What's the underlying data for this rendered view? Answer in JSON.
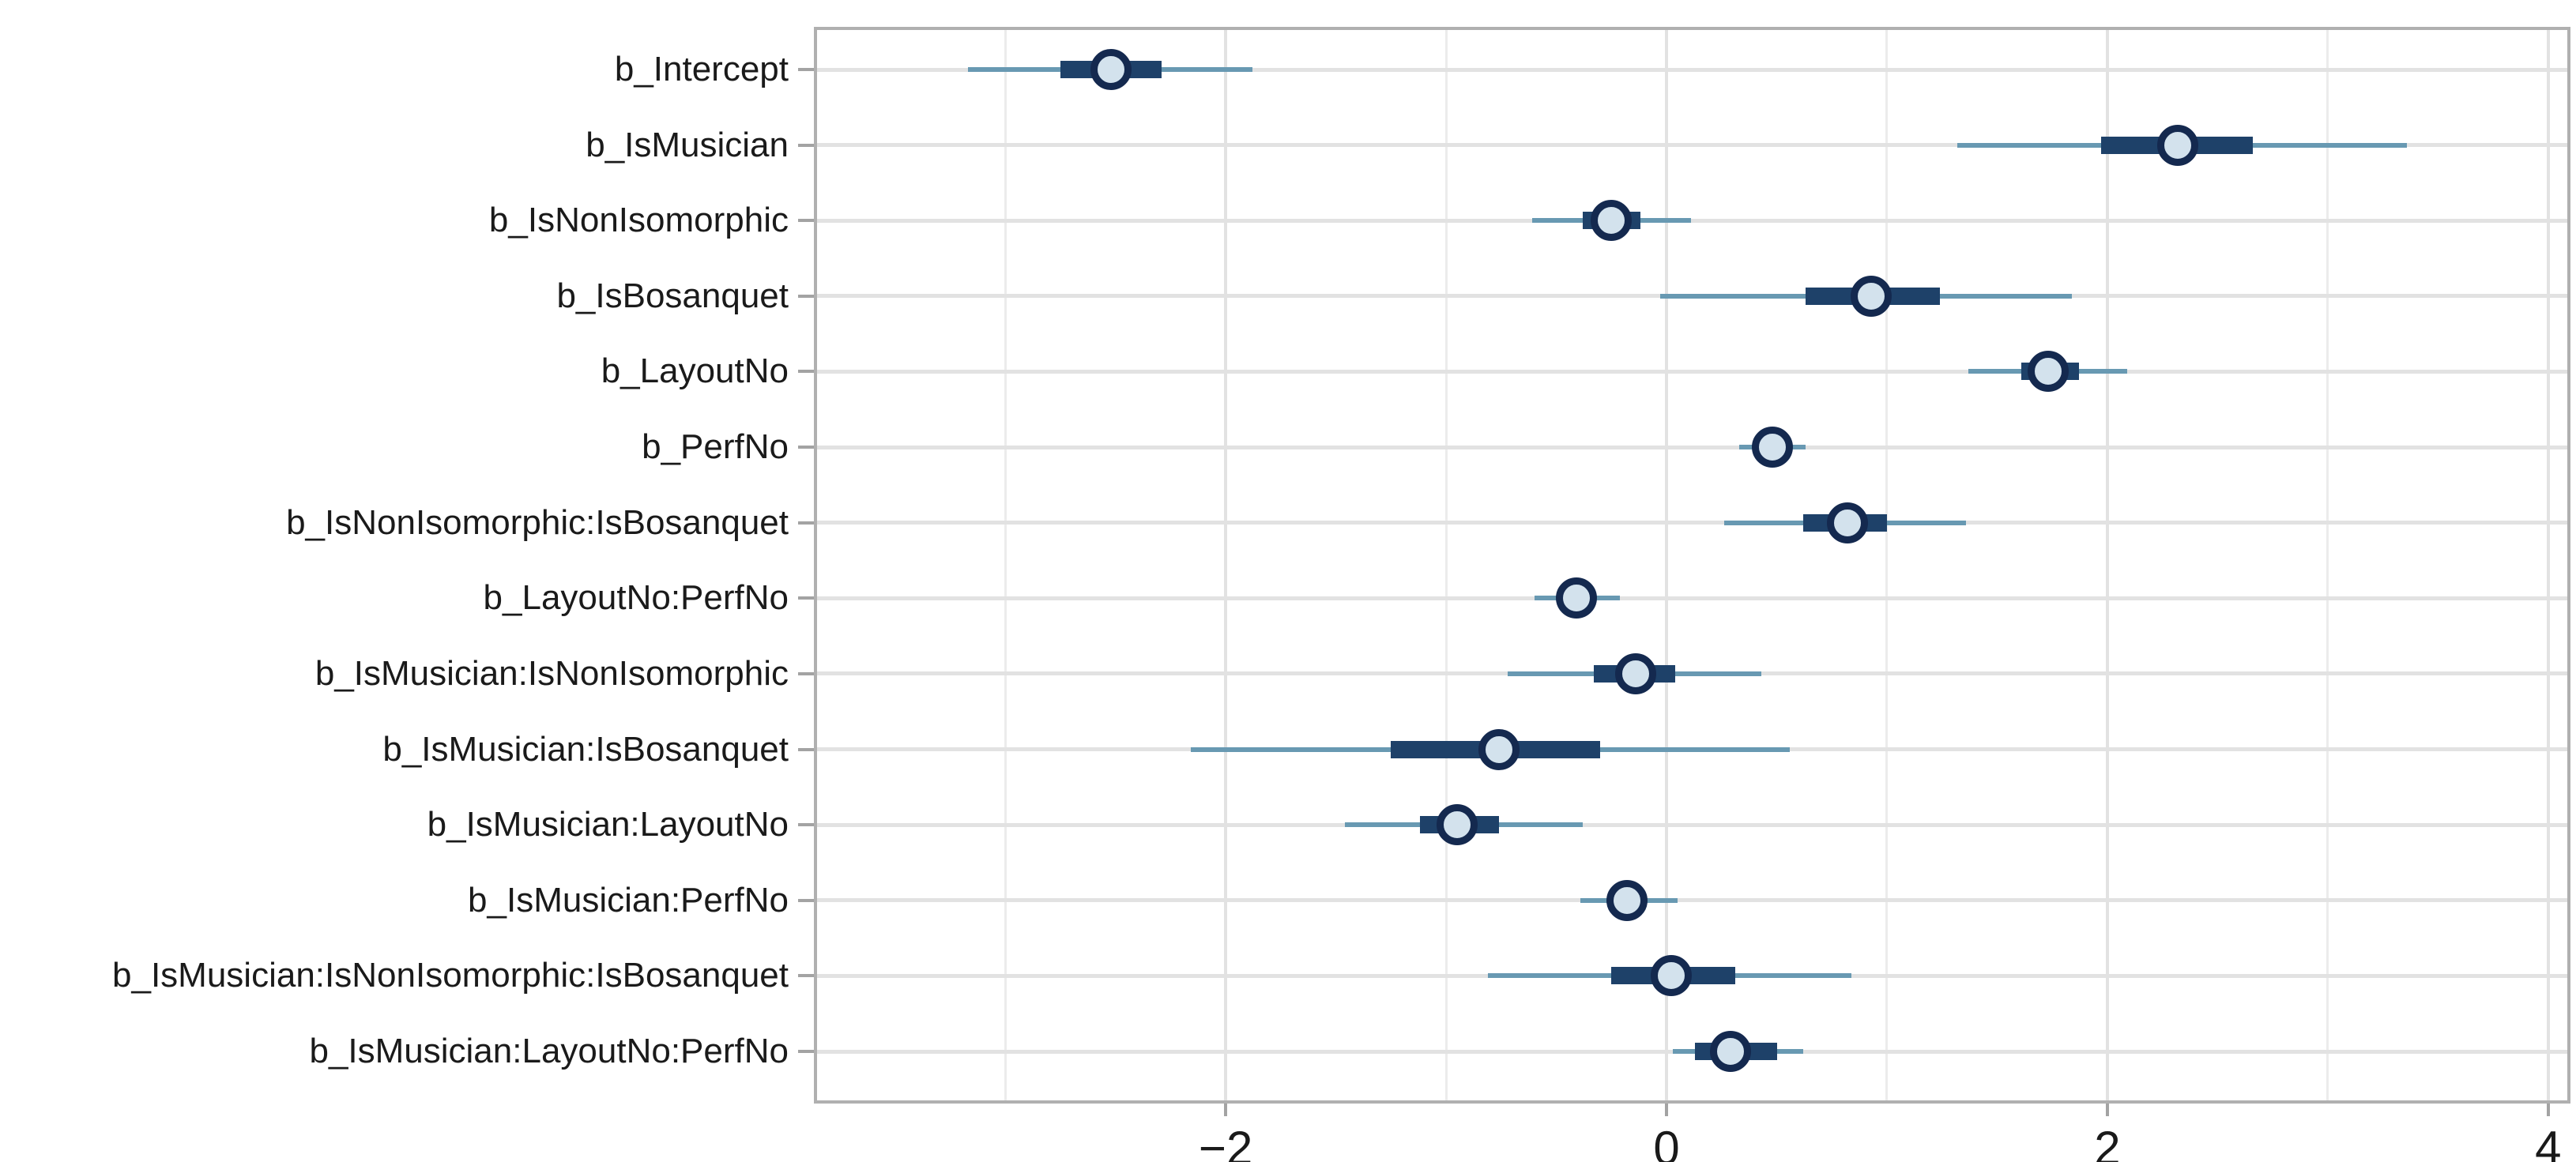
{
  "chart_data": {
    "type": "interval",
    "subtype": "mcmc_intervals_forest_plot",
    "title": "",
    "orientation": "horizontal",
    "grid": "on",
    "legend": "none",
    "x_axis": {
      "label": "",
      "range": [
        -3.85,
        4.09
      ],
      "major_ticks": [
        -2,
        0,
        2,
        4
      ],
      "major_tick_labels": [
        "−2",
        "0",
        "2",
        "4"
      ],
      "minor_gridlines": [
        -3,
        -1,
        1,
        3
      ]
    },
    "y_axis": {
      "label": "",
      "categories_top_to_bottom": [
        "b_Intercept",
        "b_IsMusician",
        "b_IsNonIsomorphic",
        "b_IsBosanquet",
        "b_LayoutNo",
        "b_PerfNo",
        "b_IsNonIsomorphic:IsBosanquet",
        "b_LayoutNo:PerfNo",
        "b_IsMusician:IsNonIsomorphic",
        "b_IsMusician:IsBosanquet",
        "b_IsMusician:LayoutNo",
        "b_IsMusician:PerfNo",
        "b_IsMusician:IsNonIsomorphic:IsBosanquet",
        "b_IsMusician:LayoutNo:PerfNo"
      ]
    },
    "series_description": "Each row: point estimate, inner (thick) interval, outer (thin) interval",
    "parameters": [
      {
        "label": "b_Intercept",
        "point": -2.52,
        "inner": [
          -2.75,
          -2.29
        ],
        "outer": [
          -3.17,
          -1.88
        ]
      },
      {
        "label": "b_IsMusician",
        "point": 2.32,
        "inner": [
          1.97,
          2.66
        ],
        "outer": [
          1.32,
          3.36
        ]
      },
      {
        "label": "b_IsNonIsomorphic",
        "point": -0.25,
        "inner": [
          -0.38,
          -0.12
        ],
        "outer": [
          -0.61,
          0.11
        ]
      },
      {
        "label": "b_IsBosanquet",
        "point": 0.93,
        "inner": [
          0.63,
          1.24
        ],
        "outer": [
          -0.03,
          1.84
        ]
      },
      {
        "label": "b_LayoutNo",
        "point": 1.73,
        "inner": [
          1.61,
          1.87
        ],
        "outer": [
          1.37,
          2.09
        ]
      },
      {
        "label": "b_PerfNo",
        "point": 0.48,
        "inner": [
          0.4,
          0.56
        ],
        "outer": [
          0.33,
          0.63
        ]
      },
      {
        "label": "b_IsNonIsomorphic:IsBosanquet",
        "point": 0.82,
        "inner": [
          0.62,
          1.0
        ],
        "outer": [
          0.26,
          1.36
        ]
      },
      {
        "label": "b_LayoutNo:PerfNo",
        "point": -0.41,
        "inner": [
          -0.48,
          -0.33
        ],
        "outer": [
          -0.6,
          -0.21
        ]
      },
      {
        "label": "b_IsMusician:IsNonIsomorphic",
        "point": -0.14,
        "inner": [
          -0.33,
          0.04
        ],
        "outer": [
          -0.72,
          0.43
        ]
      },
      {
        "label": "b_IsMusician:IsBosanquet",
        "point": -0.76,
        "inner": [
          -1.25,
          -0.3
        ],
        "outer": [
          -2.16,
          0.56
        ]
      },
      {
        "label": "b_IsMusician:LayoutNo",
        "point": -0.95,
        "inner": [
          -1.12,
          -0.76
        ],
        "outer": [
          -1.46,
          -0.38
        ]
      },
      {
        "label": "b_IsMusician:PerfNo",
        "point": -0.18,
        "inner": [
          -0.26,
          -0.1
        ],
        "outer": [
          -0.39,
          0.05
        ]
      },
      {
        "label": "b_IsMusician:IsNonIsomorphic:IsBosanquet",
        "point": 0.02,
        "inner": [
          -0.25,
          0.31
        ],
        "outer": [
          -0.81,
          0.84
        ]
      },
      {
        "label": "b_IsMusician:LayoutNo:PerfNo",
        "point": 0.29,
        "inner": [
          0.13,
          0.5
        ],
        "outer": [
          0.03,
          0.62
        ]
      }
    ],
    "colors": {
      "outer_interval": "#6899b2",
      "inner_interval": "#1e4169",
      "point_fill": "#d3e2ed",
      "point_stroke": "#14294f",
      "grid_major": "#e2e2e2",
      "grid_minor": "#ececec",
      "panel_border": "#b0b0b0",
      "tick_mark": "#a3a3a3",
      "axis_text": "#1a1a1a",
      "background": "#ffffff"
    }
  }
}
